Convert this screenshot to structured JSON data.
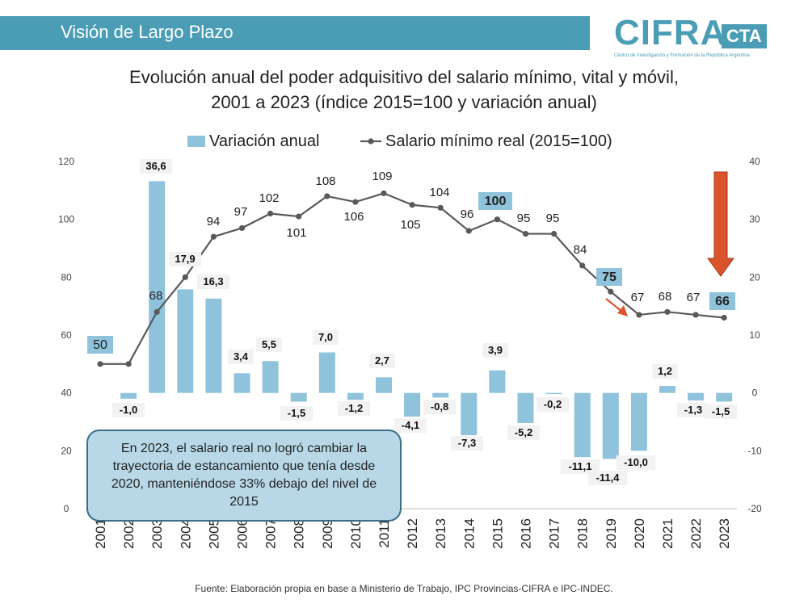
{
  "header": {
    "title": "Visión de Largo Plazo",
    "logo_main": "CIFRA",
    "logo_cta": "CTA",
    "logo_subtitle": "Centro de Investigación y Formación de la República Argentina"
  },
  "chart_title": {
    "line1": "Evolución anual del poder adquisitivo del salario mínimo, vital y móvil,",
    "line2": "2001 a 2023 (índice 2015=100 y variación anual)"
  },
  "note": "En 2023, el salario real no logró cambiar la trayectoria de estancamiento que tenía desde 2020, manteniéndose 33% debajo del nivel de 2015",
  "source": "Fuente: Elaboración propia en base a Ministerio de Trabajo, IPC Provincias-CIFRA e IPC-INDEC.",
  "colors": {
    "bar": "#8fc3dc",
    "line": "#595959",
    "header": "#4a9db5",
    "arrow": "#d9542b",
    "label_box": "#f2f2f2",
    "highlight_box": "#8fc3dc"
  },
  "chart_data": {
    "type": "bar+line",
    "categories": [
      "2001",
      "2002",
      "2003",
      "2004",
      "2005",
      "2006",
      "2007",
      "2008",
      "2009",
      "2010",
      "2011",
      "2012",
      "2013",
      "2014",
      "2015",
      "2016",
      "2017",
      "2018",
      "2019",
      "2020",
      "2021",
      "2022",
      "2023"
    ],
    "series": [
      {
        "name": "Variación anual",
        "type": "bar",
        "axis": "right",
        "values": [
          null,
          -1.0,
          36.6,
          17.9,
          16.3,
          3.4,
          5.5,
          -1.5,
          7.0,
          -1.2,
          2.7,
          -4.1,
          -0.8,
          -7.3,
          3.9,
          -5.2,
          -0.2,
          -11.1,
          -11.4,
          -10.0,
          1.2,
          -1.3,
          -1.5
        ],
        "labels": [
          "",
          "-1,0",
          "36,6",
          "17,9",
          "16,3",
          "3,4",
          "5,5",
          "-1,5",
          "7,0",
          "-1,2",
          "2,7",
          "-4,1",
          "-0,8",
          "-7,3",
          "3,9",
          "-5,2",
          "-0,2",
          "-11,1",
          "-11,4",
          "-10,0",
          "1,2",
          "-1,3",
          "-1,5"
        ]
      },
      {
        "name": "Salario mínimo real (2015=100)",
        "type": "line",
        "axis": "left",
        "values": [
          50,
          50,
          68,
          80,
          94,
          97,
          102,
          101,
          108,
          106,
          109,
          105,
          104,
          96,
          100,
          95,
          95,
          84,
          75,
          67,
          68,
          67,
          66
        ],
        "labels": [
          "50",
          "",
          "68",
          "",
          "94",
          "97",
          "102",
          "101",
          "108",
          "106",
          "109",
          "105",
          "104",
          "96",
          "100",
          "95",
          "95",
          "84",
          "75",
          "67",
          "68",
          "67",
          "66"
        ]
      }
    ],
    "y_left": {
      "min": 0,
      "max": 120,
      "ticks": [
        "0",
        "20",
        "40",
        "60",
        "80",
        "100",
        "120"
      ]
    },
    "y_right": {
      "min": -20,
      "max": 40,
      "ticks": [
        "-20",
        "-10",
        "0",
        "10",
        "20",
        "30",
        "40"
      ]
    },
    "grid": false,
    "legend_position": "top"
  }
}
